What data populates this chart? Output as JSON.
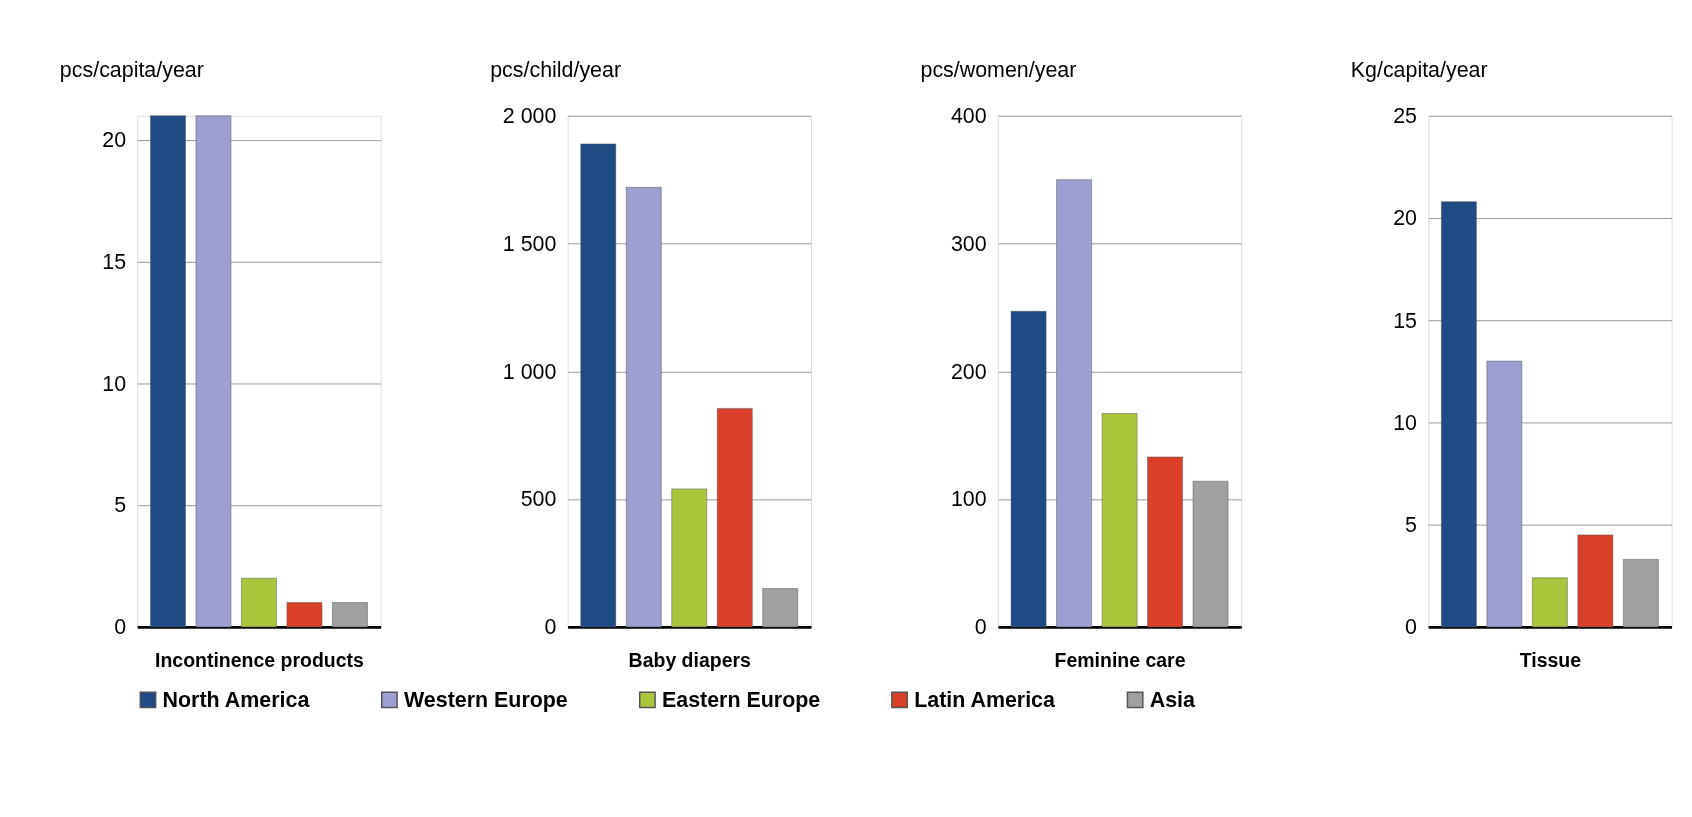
{
  "chart_data": [
    {
      "type": "bar",
      "ylabel": "pcs/capita/year",
      "xlabel": "Incontinence products",
      "categories": [
        null
      ],
      "ylim": [
        0,
        21
      ],
      "yticks": [
        0,
        5,
        10,
        15,
        20
      ],
      "grid": "y",
      "legend": "bottom",
      "series": [
        {
          "name": "North America",
          "color": "#1f4a85",
          "values": [
            21
          ]
        },
        {
          "name": "Western Europe",
          "color": "#9c9fd0",
          "values": [
            21
          ]
        },
        {
          "name": "Eastern Europe",
          "color": "#a9c53b",
          "values": [
            2
          ]
        },
        {
          "name": "Latin America",
          "color": "#d8402a",
          "values": [
            1
          ]
        },
        {
          "name": "Asia",
          "color": "#a0a0a0",
          "values": [
            1
          ]
        }
      ]
    },
    {
      "type": "bar",
      "ylabel": "pcs/child/year",
      "xlabel": "Baby diapers",
      "categories": [
        null
      ],
      "ylim": [
        0,
        2000
      ],
      "yticks": [
        0,
        500,
        {
          "value": 1000,
          "label": "1 000"
        },
        {
          "value": 1500,
          "label": "1 500"
        },
        {
          "value": 2000,
          "label": "2 000"
        }
      ],
      "grid": "y",
      "legend": "bottom",
      "series": [
        {
          "name": "North America",
          "color": "#1f4a85",
          "values": [
            1890
          ]
        },
        {
          "name": "Western Europe",
          "color": "#9c9fd0",
          "values": [
            1720
          ]
        },
        {
          "name": "Eastern Europe",
          "color": "#a9c53b",
          "values": [
            540
          ]
        },
        {
          "name": "Latin America",
          "color": "#d8402a",
          "values": [
            855
          ]
        },
        {
          "name": "Asia",
          "color": "#a0a0a0",
          "values": [
            150
          ]
        }
      ]
    },
    {
      "type": "bar",
      "ylabel": "pcs/women/year",
      "xlabel": "Feminine care",
      "categories": [
        null
      ],
      "ylim": [
        0,
        400
      ],
      "yticks": [
        0,
        100,
        200,
        300,
        400
      ],
      "grid": "y",
      "legend": "bottom",
      "series": [
        {
          "name": "North America",
          "color": "#1f4a85",
          "values": [
            247
          ]
        },
        {
          "name": "Western Europe",
          "color": "#9c9fd0",
          "values": [
            350
          ]
        },
        {
          "name": "Eastern Europe",
          "color": "#a9c53b",
          "values": [
            167
          ]
        },
        {
          "name": "Latin America",
          "color": "#d8402a",
          "values": [
            133
          ]
        },
        {
          "name": "Asia",
          "color": "#a0a0a0",
          "values": [
            114
          ]
        }
      ]
    },
    {
      "type": "bar",
      "ylabel": "Kg/capita/year",
      "xlabel": "Tissue",
      "categories": [
        null
      ],
      "ylim": [
        0,
        25
      ],
      "yticks": [
        0,
        5,
        10,
        15,
        20,
        25
      ],
      "grid": "y",
      "legend": "bottom",
      "series": [
        {
          "name": "North America",
          "color": "#1f4a85",
          "values": [
            20.8
          ]
        },
        {
          "name": "Western Europe",
          "color": "#9c9fd0",
          "values": [
            13.0
          ]
        },
        {
          "name": "Eastern Europe",
          "color": "#a9c53b",
          "values": [
            2.4
          ]
        },
        {
          "name": "Latin America",
          "color": "#d8402a",
          "values": [
            4.5
          ]
        },
        {
          "name": "Asia",
          "color": "#a0a0a0",
          "values": [
            3.3
          ]
        }
      ]
    }
  ]
}
